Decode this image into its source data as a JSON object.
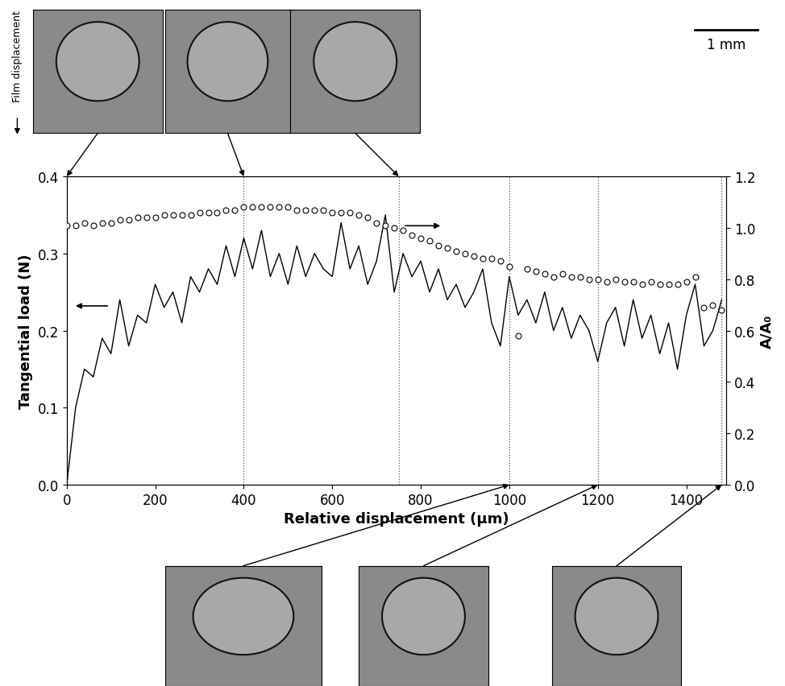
{
  "chart_data": {
    "type": "line",
    "x_label": "Relative displacement (µm)",
    "y_label": "Tangential load (N)",
    "y2_label": "A/A₀",
    "annotations": {
      "film_displacement": "Film displacement",
      "scale_bar": "1 mm"
    },
    "snapshots_x": [
      0,
      400,
      750,
      1000,
      1200,
      1480
    ],
    "x": [
      0,
      20,
      40,
      60,
      80,
      100,
      120,
      140,
      160,
      180,
      200,
      220,
      240,
      260,
      280,
      300,
      320,
      340,
      360,
      380,
      400,
      420,
      440,
      460,
      480,
      500,
      520,
      540,
      560,
      580,
      600,
      620,
      640,
      660,
      680,
      700,
      720,
      740,
      760,
      780,
      800,
      820,
      840,
      860,
      880,
      900,
      920,
      940,
      960,
      980,
      1000,
      1020,
      1040,
      1060,
      1080,
      1100,
      1120,
      1140,
      1160,
      1180,
      1200,
      1220,
      1240,
      1260,
      1280,
      1300,
      1320,
      1340,
      1360,
      1380,
      1400,
      1420,
      1440,
      1460,
      1480
    ],
    "series": [
      {
        "name": "Tangential load (N)",
        "type": "line",
        "color": "#000000",
        "line_style": "solid",
        "values": [
          0.0,
          0.1,
          0.15,
          0.14,
          0.19,
          0.17,
          0.24,
          0.18,
          0.22,
          0.21,
          0.26,
          0.23,
          0.25,
          0.21,
          0.27,
          0.25,
          0.28,
          0.26,
          0.31,
          0.27,
          0.32,
          0.28,
          0.33,
          0.27,
          0.3,
          0.26,
          0.31,
          0.27,
          0.3,
          0.28,
          0.27,
          0.34,
          0.28,
          0.31,
          0.26,
          0.29,
          0.35,
          0.25,
          0.3,
          0.27,
          0.29,
          0.25,
          0.28,
          0.24,
          0.26,
          0.23,
          0.25,
          0.28,
          0.21,
          0.18,
          0.27,
          0.22,
          0.24,
          0.21,
          0.25,
          0.2,
          0.23,
          0.19,
          0.22,
          0.2,
          0.16,
          0.21,
          0.23,
          0.18,
          0.24,
          0.19,
          0.22,
          0.17,
          0.21,
          0.15,
          0.22,
          0.26,
          0.18,
          0.2,
          0.24
        ]
      },
      {
        "name": "A/A₀",
        "type": "scatter",
        "color": "#000000",
        "marker": "o",
        "axis": "y2",
        "values": [
          1.01,
          1.01,
          1.02,
          1.01,
          1.02,
          1.02,
          1.03,
          1.03,
          1.04,
          1.04,
          1.04,
          1.05,
          1.05,
          1.05,
          1.05,
          1.06,
          1.06,
          1.06,
          1.07,
          1.07,
          1.08,
          1.08,
          1.08,
          1.08,
          1.08,
          1.08,
          1.07,
          1.07,
          1.07,
          1.07,
          1.06,
          1.06,
          1.06,
          1.05,
          1.04,
          1.02,
          1.01,
          1.0,
          0.99,
          0.97,
          0.96,
          0.95,
          0.93,
          0.92,
          0.91,
          0.9,
          0.89,
          0.88,
          0.88,
          0.87,
          0.85,
          0.58,
          0.84,
          0.83,
          0.82,
          0.81,
          0.82,
          0.81,
          0.81,
          0.8,
          0.8,
          0.79,
          0.8,
          0.79,
          0.79,
          0.78,
          0.79,
          0.78,
          0.78,
          0.78,
          0.79,
          0.81,
          0.69,
          0.7,
          0.68
        ]
      }
    ],
    "xlim": [
      0,
      1490
    ],
    "xticks": [
      0,
      200,
      400,
      600,
      800,
      1000,
      1200,
      1400
    ],
    "ylim": [
      0.0,
      0.4
    ],
    "yticks": [
      0.0,
      0.1,
      0.2,
      0.3,
      0.4
    ],
    "y2lim": [
      0.0,
      1.2
    ],
    "y2ticks": [
      0.0,
      0.2,
      0.4,
      0.6,
      0.8,
      1.0,
      1.2
    ],
    "grid": false
  }
}
